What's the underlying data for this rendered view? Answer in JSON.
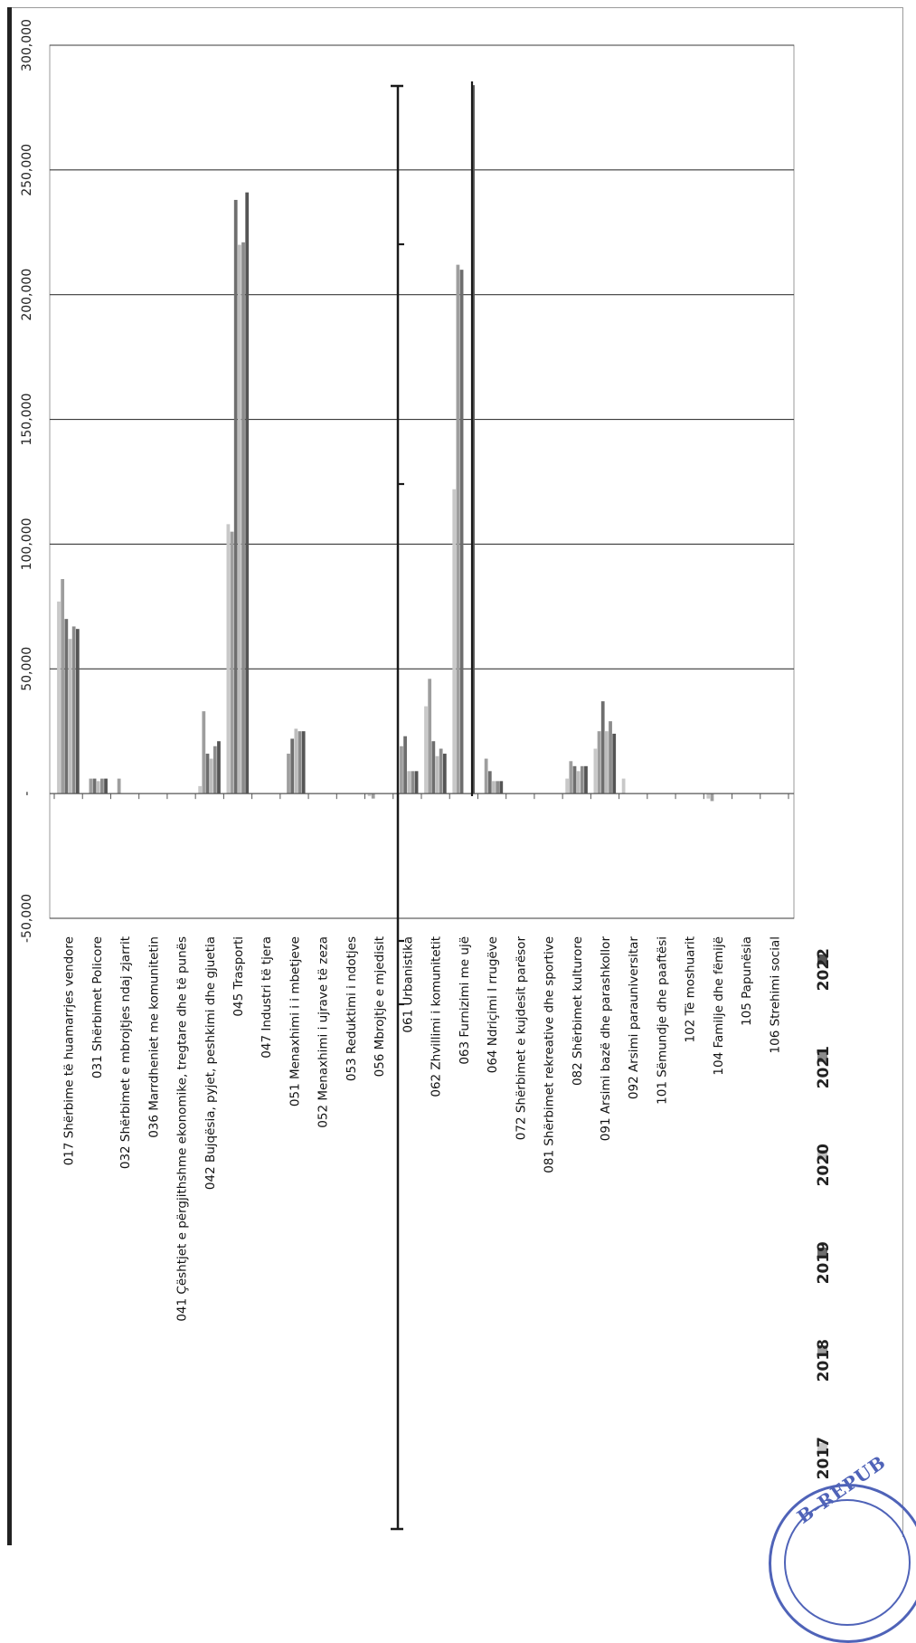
{
  "chart_data": {
    "type": "bar",
    "orientation": "rotated-90",
    "title": "",
    "xlabel": "",
    "ylabel": "",
    "ylim": [
      -50000,
      300000
    ],
    "yticks": [
      -50000,
      0,
      50000,
      100000,
      150000,
      200000,
      250000,
      300000
    ],
    "ytick_labels": [
      "-50,000",
      "-",
      "50,000",
      "100,000",
      "150,000",
      "200,000",
      "250,000",
      "300,000"
    ],
    "grid": true,
    "legend_position": "bottom",
    "categories": [
      "017 Shërbime të  huamarrjes vendore",
      "031 Shërbimet Policore",
      "032 Shërbimet e mbrojtjes ndaj zjarrit",
      "036 Marrdheniet me komunitetin",
      "041 Çështjet e përgjithshme ekonomike, tregtare dhe të punës",
      "042 Bujqësia, pyjet, peshkimi dhe gjuetia",
      "045 Trasporti",
      "047 Industri të tjera",
      "051 Menaxhimi i i mbetjeve",
      "052 Menaxhimi i ujrave të zeza",
      "053 Reduktimi i ndotjes",
      "056 Mbrojtje e mjedisit",
      "061 Urbanistika",
      "062 Zhvillimi i komunitetit",
      "063 Furnizimi me ujë",
      "064 Ndriçimi I rrugëve",
      "072 Shërbimet e kujdesit parësor",
      "081 Shërbimet rekreative dhe sportive",
      "082 Shërbimet kulturore",
      "091 Arsimi bazë dhe parashkollor",
      "092 Arsimi  parauniversitar",
      "101 Sëmundje dhe paaftësi",
      "102 Të moshuarit",
      "104 Familje dhe fëmijë",
      "105 Papunësia",
      "106 Strehimi social"
    ],
    "series": [
      {
        "name": "2017",
        "color": "#c8c8c8",
        "values": [
          77000,
          0,
          0,
          0,
          0,
          3000,
          108000,
          0,
          0,
          0,
          0,
          -1000,
          0,
          35000,
          122000,
          0,
          0,
          0,
          6000,
          18000,
          6000,
          0,
          0,
          -2000,
          0,
          0
        ]
      },
      {
        "name": "2018",
        "color": "#9e9e9e",
        "values": [
          86000,
          6000,
          6000,
          0,
          0,
          33000,
          105000,
          0,
          16000,
          0,
          0,
          -2000,
          19000,
          46000,
          212000,
          14000,
          0,
          0,
          13000,
          25000,
          0,
          0,
          0,
          -3000,
          0,
          0
        ]
      },
      {
        "name": "2019",
        "color": "#6e6e6e",
        "values": [
          70000,
          6000,
          0,
          0,
          0,
          16000,
          238000,
          0,
          22000,
          0,
          0,
          0,
          23000,
          21000,
          210000,
          9000,
          0,
          0,
          11000,
          37000,
          0,
          0,
          0,
          0,
          0,
          0
        ]
      },
      {
        "name": "2020",
        "color": "#bdbdbd",
        "values": [
          62000,
          5000,
          0,
          0,
          0,
          14000,
          220000,
          0,
          26000,
          0,
          0,
          0,
          9000,
          15000,
          0,
          5000,
          0,
          0,
          9000,
          25000,
          0,
          0,
          0,
          0,
          0,
          0
        ]
      },
      {
        "name": "2021",
        "color": "#8c8c8c",
        "values": [
          67000,
          6000,
          0,
          0,
          0,
          19000,
          221000,
          0,
          25000,
          0,
          0,
          0,
          9000,
          18000,
          0,
          5000,
          0,
          0,
          11000,
          29000,
          0,
          0,
          0,
          0,
          0,
          0
        ]
      },
      {
        "name": "2022",
        "color": "#555555",
        "values": [
          66000,
          6000,
          0,
          0,
          0,
          21000,
          241000,
          0,
          25000,
          0,
          0,
          0,
          9000,
          16000,
          284000,
          5000,
          0,
          0,
          11000,
          24000,
          0,
          0,
          0,
          0,
          0,
          0
        ]
      }
    ]
  },
  "stamp": {
    "text": "B-REPUB"
  }
}
